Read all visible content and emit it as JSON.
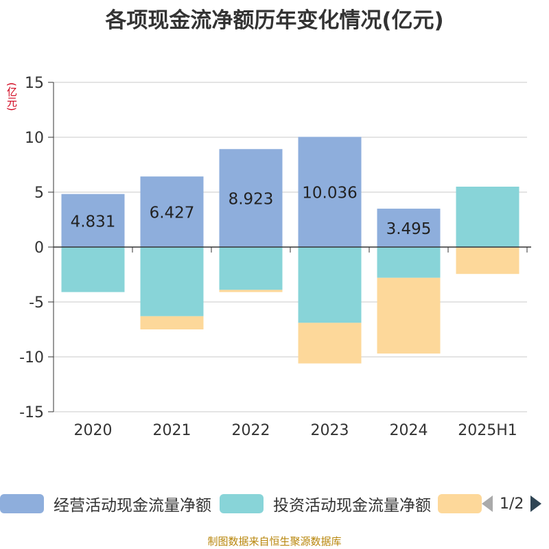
{
  "title": "各项现金流净额历年变化情况(亿元)",
  "unit_label": "(亿元)",
  "footer": "制图数据来自恒生聚源数据库",
  "pager": {
    "text": "1/2"
  },
  "legend": [
    {
      "label": "经营活动现金流量净额",
      "color": "#8eaedc"
    },
    {
      "label": "投资活动现金流量净额",
      "color": "#88d4d8"
    },
    {
      "label": "",
      "color": "#fdd89a"
    }
  ],
  "chart_data": {
    "type": "bar",
    "stacked": true,
    "categories": [
      "2020",
      "2021",
      "2022",
      "2023",
      "2024",
      "2025H1"
    ],
    "ylim": [
      -15,
      15
    ],
    "yticks": [
      15,
      10,
      5,
      0,
      -5,
      -10,
      -15
    ],
    "grid": true,
    "legend_position": "bottom",
    "series": [
      {
        "name": "经营活动现金流量净额",
        "color": "#8eaedc",
        "values": [
          4.831,
          6.427,
          8.923,
          10.036,
          3.495,
          -0.05
        ],
        "labels": [
          "4.831",
          "6.427",
          "8.923",
          "10.036",
          "3.495",
          ""
        ]
      },
      {
        "name": "投资活动现金流量净额",
        "color": "#88d4d8",
        "values": [
          -4.1,
          -6.3,
          -3.9,
          -6.9,
          -2.8,
          5.5
        ],
        "labels": [
          "",
          "",
          "",
          "",
          "",
          ""
        ]
      },
      {
        "name": "",
        "color": "#fdd89a",
        "values": [
          0,
          -1.2,
          -0.2,
          -3.7,
          -6.9,
          -2.4
        ],
        "labels": [
          "",
          "",
          "",
          "",
          "",
          ""
        ]
      }
    ]
  }
}
